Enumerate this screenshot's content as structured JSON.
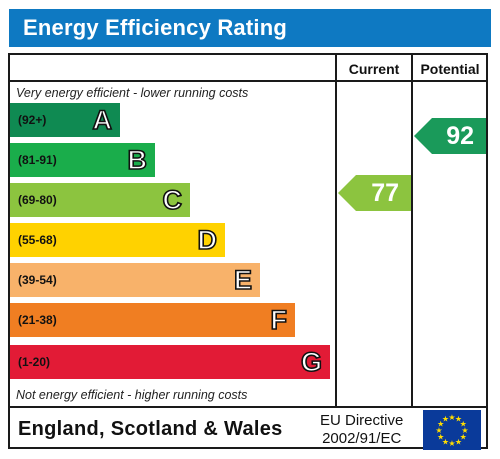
{
  "title": "Energy Efficiency Rating",
  "columns": {
    "current": "Current",
    "potential": "Potential"
  },
  "captions": {
    "top": "Very energy efficient - lower running costs",
    "bottom": "Not energy efficient - higher running costs"
  },
  "bands": [
    {
      "range": "(92+)",
      "letter": "A",
      "color": "#0f8a52"
    },
    {
      "range": "(81-91)",
      "letter": "B",
      "color": "#1aad4b"
    },
    {
      "range": "(69-80)",
      "letter": "C",
      "color": "#8cc43f"
    },
    {
      "range": "(55-68)",
      "letter": "D",
      "color": "#ffd200"
    },
    {
      "range": "(39-54)",
      "letter": "E",
      "color": "#f8b26a"
    },
    {
      "range": "(21-38)",
      "letter": "F",
      "color": "#f07e22"
    },
    {
      "range": "(1-20)",
      "letter": "G",
      "color": "#e21b36"
    }
  ],
  "current": {
    "value": "77",
    "color": "#8cc43f"
  },
  "potential": {
    "value": "92",
    "color": "#1a9a5a"
  },
  "footer": {
    "region": "England, Scotland & Wales",
    "directive_line1": "EU Directive",
    "directive_line2": "2002/91/EC"
  },
  "icons": {
    "flag": "eu-flag-icon"
  }
}
